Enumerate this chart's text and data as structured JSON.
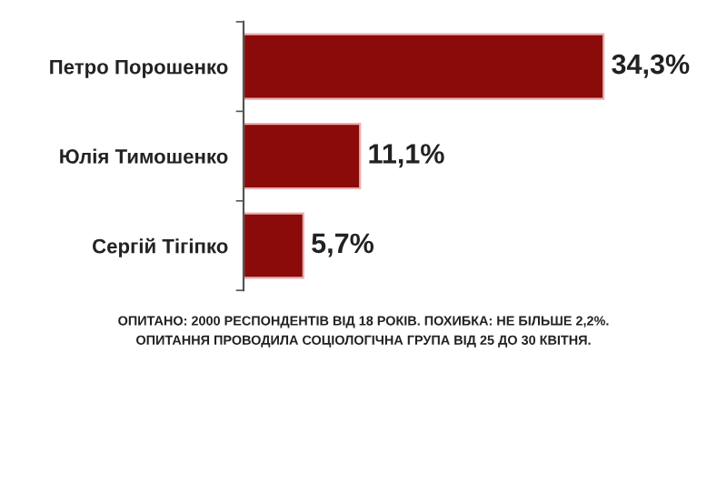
{
  "chart_data": {
    "type": "bar",
    "orientation": "horizontal",
    "categories": [
      "Петро Порошенко",
      "Юлія Тимошенко",
      "Сергій Тігіпко"
    ],
    "values": [
      34.3,
      11.1,
      5.7
    ],
    "color": "#8b0a0a",
    "value_labels": [
      "34,3%",
      "11,1%",
      "5,7%"
    ],
    "tick_labels": "y",
    "grid": false,
    "legend": false,
    "annotations": [
      "ОПИТАНО: 2000 РЕСПОНДЕНТІВ ВІД 18 РОКІВ. ПОХИБКА: НЕ БІЛЬШЕ 2,2%.",
      "ОПИТАННЯ ПРОВОДИЛА СОЦІОЛОГІЧНА ГРУПА ВІД 25 ДО 30 КВІТНЯ."
    ]
  }
}
